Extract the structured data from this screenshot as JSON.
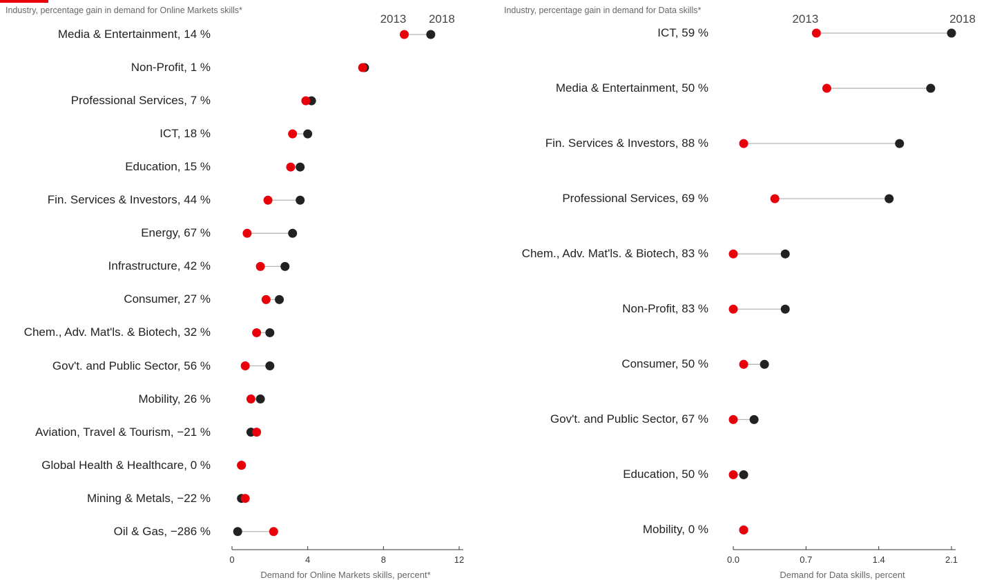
{
  "colors": {
    "y2013": "#e8000b",
    "y2018": "#222222",
    "connector": "#b5b5b5",
    "axis": "#333333"
  },
  "chart_data": [
    {
      "type": "scatter",
      "subtitle": "Industry, percentage gain in demand for Online Markets skills*",
      "legend": {
        "start_label": "2013",
        "end_label": "2018",
        "placement": "top-right"
      },
      "xlabel": "Demand for Online Markets skills, percent*",
      "xlim": [
        0,
        12
      ],
      "xticks": [
        "0",
        "4",
        "8",
        "12"
      ],
      "rows": [
        {
          "label": "Media & Entertainment,  14 %",
          "v2013": 9.1,
          "v2018": 10.5
        },
        {
          "label": "Non-Profit,  1 %",
          "v2013": 6.9,
          "v2018": 7.0
        },
        {
          "label": "Professional Services,  7 %",
          "v2013": 3.9,
          "v2018": 4.2
        },
        {
          "label": "ICT,  18 %",
          "v2013": 3.2,
          "v2018": 4.0
        },
        {
          "label": "Education,  15 %",
          "v2013": 3.1,
          "v2018": 3.6
        },
        {
          "label": "Fin. Services & Investors,  44 %",
          "v2013": 1.9,
          "v2018": 3.6
        },
        {
          "label": "Energy,  67 %",
          "v2013": 0.8,
          "v2018": 3.2
        },
        {
          "label": "Infrastructure,  42 %",
          "v2013": 1.5,
          "v2018": 2.8
        },
        {
          "label": "Consumer,  27 %",
          "v2013": 1.8,
          "v2018": 2.5
        },
        {
          "label": "Chem., Adv. Mat'ls. & Biotech,  32 %",
          "v2013": 1.3,
          "v2018": 2.0
        },
        {
          "label": "Gov't. and Public Sector,  56 %",
          "v2013": 0.7,
          "v2018": 2.0
        },
        {
          "label": "Mobility,  26 %",
          "v2013": 1.0,
          "v2018": 1.5
        },
        {
          "label": "Aviation, Travel & Tourism,  −21 %",
          "v2013": 1.3,
          "v2018": 1.0
        },
        {
          "label": "Global Health & Healthcare,  0 %",
          "v2013": 0.5,
          "v2018": 0.5
        },
        {
          "label": "Mining & Metals,  −22 %",
          "v2013": 0.7,
          "v2018": 0.5
        },
        {
          "label": "Oil & Gas,  −286 %",
          "v2013": 2.2,
          "v2018": 0.3
        }
      ]
    },
    {
      "type": "scatter",
      "subtitle": "Industry, percentage gain in demand for Data skills*",
      "legend": {
        "start_label": "2013",
        "end_label": "2018",
        "placement": "top-right"
      },
      "xlabel": "Demand for Data skills, percent",
      "xlim": [
        0,
        2.1
      ],
      "xticks": [
        "0.0",
        "0.7",
        "1.4",
        "2.1"
      ],
      "rows": [
        {
          "label": "ICT,  59 %",
          "v2013": 0.8,
          "v2018": 2.1
        },
        {
          "label": "Media & Entertainment,  50 %",
          "v2013": 0.9,
          "v2018": 1.9
        },
        {
          "label": "Fin. Services & Investors,  88 %",
          "v2013": 0.1,
          "v2018": 1.6
        },
        {
          "label": "Professional Services,  69 %",
          "v2013": 0.4,
          "v2018": 1.5
        },
        {
          "label": "Chem., Adv. Mat'ls. & Biotech,  83 %",
          "v2013": 0.0,
          "v2018": 0.5
        },
        {
          "label": "Non-Profit,  83 %",
          "v2013": 0.0,
          "v2018": 0.5
        },
        {
          "label": "Consumer,  50 %",
          "v2013": 0.1,
          "v2018": 0.3
        },
        {
          "label": "Gov't. and Public Sector,  67 %",
          "v2013": 0.0,
          "v2018": 0.2
        },
        {
          "label": "Education,  50 %",
          "v2013": 0.0,
          "v2018": 0.1
        },
        {
          "label": "Mobility,  0 %",
          "v2013": 0.1,
          "v2018": 0.1
        }
      ]
    }
  ]
}
